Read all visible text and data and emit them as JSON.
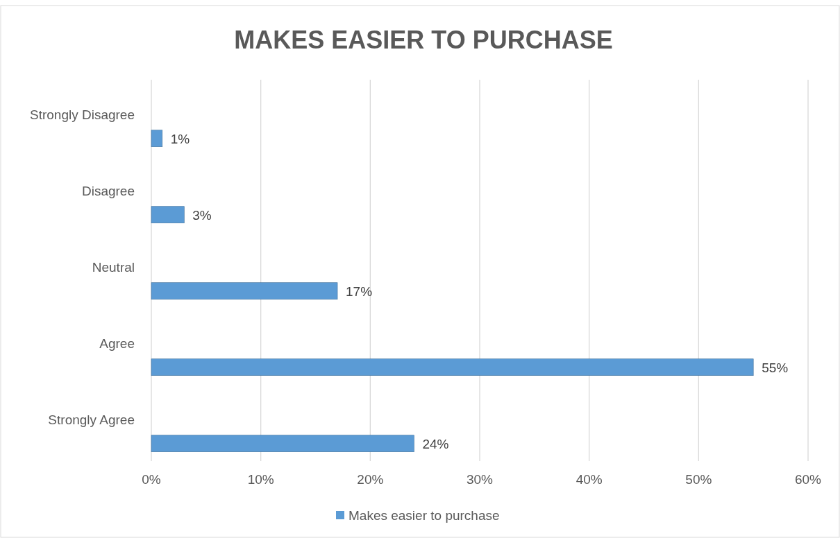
{
  "chart_data": {
    "type": "bar",
    "orientation": "horizontal",
    "title": "MAKES EASIER TO PURCHASE",
    "categories": [
      "Strongly Disagree",
      "Disagree",
      "Neutral",
      "Agree",
      "Strongly Agree"
    ],
    "series": [
      {
        "name": "Makes easier to purchase",
        "color": "#5b9bd5",
        "values": [
          1,
          3,
          17,
          55,
          24
        ],
        "value_labels": [
          "1%",
          "3%",
          "17%",
          "55%",
          "24%"
        ]
      }
    ],
    "xlim": [
      0,
      60
    ],
    "xticks": [
      {
        "value": 0,
        "label": "0%"
      },
      {
        "value": 10,
        "label": "10%"
      },
      {
        "value": 20,
        "label": "20%"
      },
      {
        "value": 30,
        "label": "30%"
      },
      {
        "value": 40,
        "label": "40%"
      },
      {
        "value": 50,
        "label": "50%"
      },
      {
        "value": 60,
        "label": "60%"
      }
    ],
    "grid": "x",
    "legend": "bottom"
  }
}
